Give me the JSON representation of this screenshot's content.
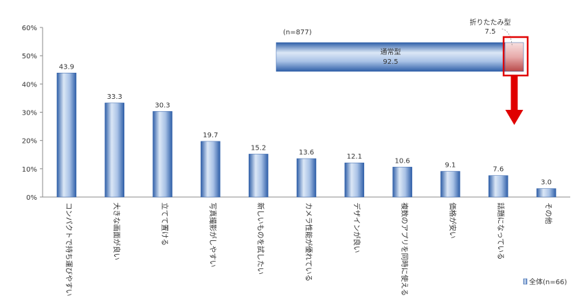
{
  "chart_data": [
    {
      "type": "bar",
      "categories": [
        "コンパクトで持ち運びやすい",
        "大きな画面が良い",
        "立てて置ける",
        "写真撮影がしやすい",
        "新しいものを試したい",
        "カメラ性能が優れている",
        "デザインが良い",
        "複数のアプリを同時に使える",
        "価格が安い",
        "話題になっている",
        "その他"
      ],
      "series": [
        {
          "name": "全体(n=66)",
          "values": [
            43.9,
            33.3,
            30.3,
            19.7,
            15.2,
            13.6,
            12.1,
            10.6,
            9.1,
            7.6,
            3.0
          ]
        }
      ],
      "data_labels": [
        "43.9",
        "33.3",
        "30.3",
        "19.7",
        "15.2",
        "13.6",
        "12.1",
        "10.6",
        "9.1",
        "7.6",
        "3.0"
      ],
      "ylim": [
        0,
        60
      ],
      "y_ticks": [
        "0%",
        "10%",
        "20%",
        "30%",
        "40%",
        "50%",
        "60%"
      ],
      "grid": false,
      "legend": {
        "position": "bottom-right",
        "label": "全体(n=66)"
      },
      "colors": {
        "bar": "#6f97cf",
        "bar_light": "#dbe7f6",
        "axis": "#888888"
      }
    },
    {
      "type": "bar",
      "orientation": "horizontal-stacked",
      "sample_label": "(n=877)",
      "segments": [
        {
          "name": "通常型",
          "value": 92.5,
          "label": "92.5"
        },
        {
          "name": "折りたたみ型",
          "value": 7.5,
          "label": "7.5"
        }
      ],
      "highlight": "折りたたみ型",
      "colors": {
        "main": "#6f97cf",
        "minor": "#d88a8a",
        "highlight": "#e00000"
      }
    }
  ]
}
